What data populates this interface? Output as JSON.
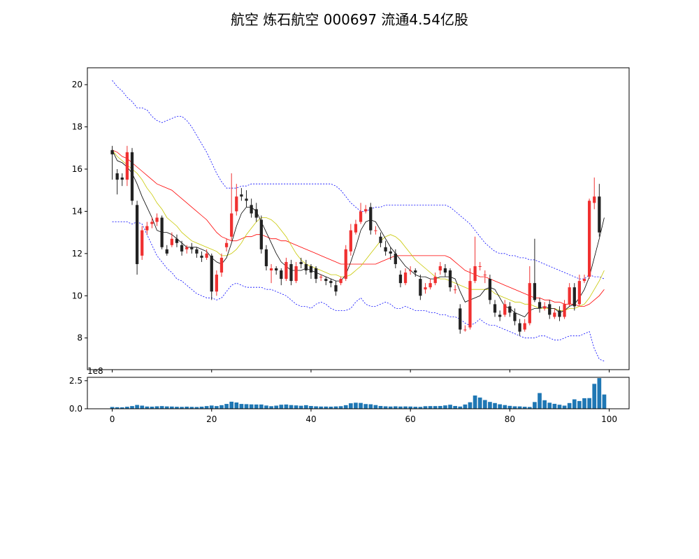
{
  "chart_data": {
    "type": "candlestick",
    "title": "航空 炼石航空 000697 流通4.54亿股",
    "colors": {
      "up": "#f03030",
      "down": "#222222",
      "ma5": "#000000",
      "ma10": "#c8c800",
      "ma20": "#ff0000",
      "boll": "#0000ff",
      "volume": "#1f77b4"
    },
    "price_axis": {
      "ylim": [
        6.5,
        20.8
      ],
      "ticks": [
        8,
        10,
        12,
        14,
        16,
        18,
        20
      ]
    },
    "volume_axis": {
      "ylim": [
        0,
        2.8
      ],
      "ticks": [
        0.0,
        2.5
      ],
      "tick_labels": [
        "0.0",
        "2.5"
      ],
      "offset_text": "1e8"
    },
    "x_axis": {
      "xlim": [
        -5,
        104
      ],
      "ticks": [
        0,
        20,
        40,
        60,
        80,
        100
      ]
    },
    "ohlc": [
      [
        16.9,
        16.7,
        17.1,
        15.5
      ],
      [
        15.8,
        15.5,
        16.0,
        14.8
      ],
      [
        15.6,
        15.5,
        15.8,
        15.2
      ],
      [
        15.5,
        16.8,
        17.1,
        15.2
      ],
      [
        16.8,
        14.5,
        17.0,
        14.3
      ],
      [
        14.3,
        11.5,
        14.5,
        11.0
      ],
      [
        11.9,
        13.1,
        13.3,
        11.7
      ],
      [
        13.1,
        13.3,
        13.5,
        12.9
      ],
      [
        13.4,
        13.5,
        13.7,
        13.2
      ],
      [
        13.5,
        13.7,
        13.9,
        13.3
      ],
      [
        13.7,
        12.3,
        13.8,
        12.2
      ],
      [
        12.2,
        12.0,
        12.4,
        11.9
      ],
      [
        12.4,
        12.7,
        13.0,
        12.3
      ],
      [
        12.7,
        12.5,
        12.9,
        12.3
      ],
      [
        12.4,
        12.1,
        12.6,
        11.9
      ],
      [
        12.2,
        12.3,
        12.4,
        12.0
      ],
      [
        12.3,
        12.2,
        12.5,
        12.0
      ],
      [
        12.2,
        12.0,
        12.3,
        11.8
      ],
      [
        11.9,
        11.8,
        12.1,
        11.6
      ],
      [
        11.8,
        12.0,
        12.2,
        11.7
      ],
      [
        11.9,
        10.2,
        12.0,
        9.8
      ],
      [
        10.2,
        11.0,
        11.2,
        10.0
      ],
      [
        11.1,
        11.8,
        12.0,
        10.9
      ],
      [
        12.3,
        12.5,
        12.7,
        12.1
      ],
      [
        12.8,
        13.9,
        15.8,
        12.6
      ],
      [
        14.0,
        14.7,
        15.3,
        13.8
      ],
      [
        14.8,
        14.7,
        15.1,
        14.5
      ],
      [
        14.6,
        14.5,
        15.0,
        14.2
      ],
      [
        14.3,
        13.9,
        14.6,
        13.7
      ],
      [
        14.1,
        13.7,
        14.4,
        13.5
      ],
      [
        13.6,
        12.2,
        13.8,
        12.0
      ],
      [
        12.2,
        11.4,
        12.4,
        11.2
      ],
      [
        11.2,
        11.3,
        11.5,
        10.6
      ],
      [
        11.3,
        11.2,
        11.4,
        11.0
      ],
      [
        11.2,
        10.8,
        11.3,
        10.5
      ],
      [
        10.8,
        11.6,
        11.8,
        10.7
      ],
      [
        11.5,
        10.7,
        11.7,
        10.5
      ],
      [
        10.7,
        11.4,
        11.6,
        10.6
      ],
      [
        11.6,
        11.5,
        11.8,
        11.3
      ],
      [
        11.5,
        11.2,
        11.7,
        11.0
      ],
      [
        11.4,
        11.1,
        11.5,
        10.8
      ],
      [
        11.3,
        10.8,
        11.4,
        10.6
      ],
      [
        10.9,
        10.9,
        11.0,
        10.7
      ],
      [
        10.8,
        10.7,
        10.9,
        10.5
      ],
      [
        10.7,
        10.6,
        10.8,
        10.4
      ],
      [
        10.5,
        10.2,
        10.7,
        10.0
      ],
      [
        10.6,
        10.8,
        10.9,
        10.5
      ],
      [
        10.8,
        12.2,
        12.4,
        10.7
      ],
      [
        12.1,
        13.1,
        13.4,
        11.9
      ],
      [
        13.0,
        13.4,
        13.6,
        12.9
      ],
      [
        13.5,
        14.0,
        14.4,
        13.4
      ],
      [
        14.0,
        14.1,
        14.3,
        13.9
      ],
      [
        14.2,
        13.1,
        14.4,
        12.9
      ],
      [
        13.1,
        13.1,
        13.3,
        12.9
      ],
      [
        12.8,
        12.5,
        13.0,
        12.3
      ],
      [
        12.3,
        12.1,
        12.6,
        11.9
      ],
      [
        12.1,
        12.0,
        12.3,
        11.7
      ],
      [
        12.0,
        11.5,
        12.2,
        11.3
      ],
      [
        11.0,
        10.6,
        11.2,
        10.4
      ],
      [
        10.6,
        11.1,
        11.3,
        10.5
      ],
      [
        11.2,
        11.2,
        11.4,
        11.0
      ],
      [
        11.2,
        11.1,
        11.3,
        10.9
      ],
      [
        10.8,
        10.0,
        11.0,
        9.8
      ],
      [
        10.3,
        10.4,
        10.6,
        10.1
      ],
      [
        10.4,
        10.6,
        10.8,
        10.3
      ],
      [
        10.6,
        10.9,
        11.1,
        10.5
      ],
      [
        11.2,
        11.4,
        11.6,
        11.0
      ],
      [
        11.3,
        11.1,
        11.5,
        10.9
      ],
      [
        11.2,
        10.4,
        11.3,
        10.2
      ],
      [
        10.3,
        10.3,
        10.5,
        10.1
      ],
      [
        9.4,
        8.4,
        9.6,
        8.2
      ],
      [
        8.4,
        8.4,
        8.6,
        8.3
      ],
      [
        8.5,
        10.7,
        11.3,
        8.4
      ],
      [
        10.7,
        11.4,
        12.8,
        10.6
      ],
      [
        11.4,
        11.4,
        11.6,
        11.2
      ],
      [
        11.0,
        11.0,
        11.2,
        10.6
      ],
      [
        10.8,
        9.8,
        11.0,
        9.6
      ],
      [
        9.6,
        9.2,
        9.8,
        9.0
      ],
      [
        9.1,
        9.0,
        9.3,
        8.8
      ],
      [
        9.1,
        9.6,
        9.8,
        9.0
      ],
      [
        9.5,
        9.2,
        9.7,
        9.0
      ],
      [
        9.2,
        8.8,
        9.4,
        8.6
      ],
      [
        8.7,
        8.3,
        8.9,
        8.1
      ],
      [
        8.4,
        8.7,
        8.9,
        8.3
      ],
      [
        8.7,
        10.6,
        11.4,
        8.6
      ],
      [
        10.6,
        9.8,
        12.7,
        9.7
      ],
      [
        9.7,
        9.4,
        9.9,
        9.2
      ],
      [
        9.4,
        9.5,
        9.7,
        9.3
      ],
      [
        9.6,
        9.1,
        9.8,
        8.9
      ],
      [
        9.0,
        9.2,
        9.4,
        8.9
      ],
      [
        9.3,
        9.0,
        9.5,
        8.8
      ],
      [
        9.0,
        9.6,
        9.8,
        8.9
      ],
      [
        9.6,
        10.4,
        10.6,
        9.5
      ],
      [
        10.4,
        9.5,
        10.6,
        9.3
      ],
      [
        9.6,
        10.7,
        11.0,
        9.5
      ],
      [
        10.7,
        10.8,
        11.0,
        10.6
      ],
      [
        10.9,
        14.5,
        14.6,
        10.8
      ],
      [
        14.4,
        14.7,
        15.6,
        14.1
      ],
      [
        14.7,
        13.0,
        15.3,
        12.8
      ]
    ],
    "ma5": [
      16.9,
      16.4,
      16.3,
      16.1,
      15.8,
      15.3,
      14.7,
      14.2,
      13.7,
      13.1,
      13.0,
      13.0,
      12.9,
      12.7,
      12.5,
      12.3,
      12.3,
      12.3,
      12.2,
      12.1,
      11.8,
      11.6,
      11.5,
      11.8,
      12.5,
      13.3,
      13.9,
      14.2,
      14.2,
      14.0,
      13.5,
      13.0,
      12.5,
      12.0,
      11.6,
      11.4,
      11.2,
      11.2,
      11.2,
      11.3,
      11.2,
      11.1,
      11.0,
      10.9,
      10.8,
      10.7,
      10.7,
      11.0,
      11.6,
      12.3,
      13.1,
      13.5,
      13.6,
      13.5,
      13.1,
      12.7,
      12.3,
      12.0,
      11.7,
      11.4,
      11.2,
      11.0,
      10.9,
      10.9,
      10.8,
      10.8,
      10.9,
      10.9,
      10.9,
      10.8,
      10.2,
      9.7,
      9.8,
      9.9,
      10.0,
      10.3,
      10.4,
      10.3,
      9.9,
      9.5,
      9.4,
      9.2,
      9.1,
      9.0,
      9.3,
      9.4,
      9.4,
      9.5,
      9.4,
      9.4,
      9.2,
      9.3,
      9.5,
      9.6,
      9.9,
      10.3,
      10.9,
      11.8,
      12.7,
      13.7
    ],
    "ma10": [
      16.9,
      16.6,
      16.4,
      16.2,
      16.0,
      15.8,
      15.5,
      15.1,
      14.8,
      14.4,
      14.1,
      13.7,
      13.5,
      13.3,
      13.0,
      12.8,
      12.6,
      12.5,
      12.4,
      12.3,
      12.2,
      12.1,
      11.9,
      11.9,
      12.0,
      12.2,
      12.5,
      12.9,
      13.2,
      13.5,
      13.7,
      13.7,
      13.6,
      13.4,
      13.1,
      12.8,
      12.4,
      12.0,
      11.7,
      11.5,
      11.4,
      11.3,
      11.2,
      11.1,
      11.0,
      11.0,
      10.9,
      10.9,
      11.0,
      11.2,
      11.4,
      11.7,
      12.0,
      12.3,
      12.6,
      12.8,
      12.9,
      12.8,
      12.6,
      12.3,
      12.0,
      11.7,
      11.5,
      11.3,
      11.1,
      10.9,
      10.8,
      10.8,
      10.7,
      10.6,
      10.5,
      10.4,
      10.3,
      10.3,
      10.3,
      10.3,
      10.3,
      10.1,
      10.0,
      9.9,
      9.8,
      9.7,
      9.7,
      9.6,
      9.6,
      9.5,
      9.4,
      9.4,
      9.4,
      9.4,
      9.3,
      9.3,
      9.4,
      9.4,
      9.5,
      9.6,
      9.9,
      10.3,
      10.7,
      11.2
    ],
    "ma20": [
      16.9,
      16.8,
      16.6,
      16.5,
      16.3,
      16.1,
      15.9,
      15.7,
      15.5,
      15.3,
      15.2,
      15.1,
      15.0,
      14.8,
      14.6,
      14.4,
      14.2,
      14.0,
      13.8,
      13.6,
      13.3,
      13.0,
      12.8,
      12.7,
      12.6,
      12.6,
      12.7,
      12.8,
      12.8,
      12.9,
      12.9,
      12.8,
      12.7,
      12.7,
      12.6,
      12.6,
      12.5,
      12.4,
      12.3,
      12.2,
      12.1,
      12.0,
      11.9,
      11.8,
      11.7,
      11.6,
      11.5,
      11.5,
      11.5,
      11.5,
      11.5,
      11.5,
      11.5,
      11.5,
      11.6,
      11.7,
      11.8,
      11.9,
      11.9,
      11.9,
      11.9,
      11.9,
      11.9,
      11.9,
      11.9,
      11.9,
      11.9,
      11.9,
      11.8,
      11.6,
      11.4,
      11.2,
      11.1,
      11.0,
      10.9,
      10.9,
      10.8,
      10.7,
      10.6,
      10.5,
      10.4,
      10.3,
      10.2,
      10.1,
      10.0,
      9.9,
      9.9,
      9.8,
      9.8,
      9.7,
      9.7,
      9.6,
      9.6,
      9.6,
      9.5,
      9.5,
      9.6,
      9.8,
      10.0,
      10.3
    ],
    "boll_upper": [
      20.2,
      19.9,
      19.7,
      19.4,
      19.2,
      18.9,
      18.9,
      18.8,
      18.5,
      18.3,
      18.2,
      18.3,
      18.4,
      18.5,
      18.5,
      18.3,
      18.0,
      17.6,
      17.2,
      16.8,
      16.3,
      15.8,
      15.4,
      15.1,
      15.1,
      15.1,
      15.2,
      15.2,
      15.3,
      15.3,
      15.3,
      15.3,
      15.3,
      15.3,
      15.3,
      15.3,
      15.3,
      15.3,
      15.3,
      15.3,
      15.3,
      15.3,
      15.3,
      15.3,
      15.3,
      15.2,
      15.0,
      14.7,
      14.4,
      14.2,
      14.0,
      14.0,
      14.1,
      14.2,
      14.2,
      14.3,
      14.3,
      14.3,
      14.3,
      14.3,
      14.3,
      14.3,
      14.3,
      14.3,
      14.3,
      14.3,
      14.3,
      14.3,
      14.2,
      14.0,
      13.8,
      13.6,
      13.4,
      13.1,
      12.8,
      12.5,
      12.3,
      12.1,
      12.0,
      12.0,
      11.9,
      11.9,
      11.8,
      11.8,
      11.7,
      11.7,
      11.6,
      11.5,
      11.4,
      11.3,
      11.2,
      11.1,
      11.0,
      10.9,
      10.8,
      10.8,
      11.0,
      10.9,
      10.9,
      10.8
    ],
    "boll_lower": [
      13.5,
      13.5,
      13.5,
      13.5,
      13.4,
      13.5,
      13.4,
      12.9,
      12.4,
      11.9,
      11.6,
      11.3,
      11.1,
      10.8,
      10.7,
      10.5,
      10.3,
      10.1,
      10.0,
      9.9,
      9.9,
      9.8,
      9.9,
      10.2,
      10.5,
      10.6,
      10.5,
      10.4,
      10.4,
      10.4,
      10.4,
      10.3,
      10.3,
      10.2,
      10.1,
      10.0,
      9.8,
      9.6,
      9.5,
      9.5,
      9.4,
      9.6,
      9.7,
      9.6,
      9.4,
      9.3,
      9.3,
      9.3,
      9.4,
      9.7,
      9.9,
      9.6,
      9.5,
      9.5,
      9.6,
      9.7,
      9.6,
      9.4,
      9.4,
      9.5,
      9.4,
      9.3,
      9.3,
      9.3,
      9.2,
      9.2,
      9.1,
      9.1,
      9.0,
      9.0,
      8.9,
      8.7,
      8.6,
      8.7,
      8.9,
      8.7,
      8.6,
      8.6,
      8.5,
      8.4,
      8.3,
      8.2,
      8.1,
      8.0,
      8.0,
      8.0,
      8.1,
      8.1,
      8.0,
      7.9,
      7.9,
      8.0,
      8.1,
      8.1,
      8.1,
      8.2,
      8.3,
      7.5,
      7.0,
      6.9
    ],
    "volume": [
      0.16,
      0.14,
      0.13,
      0.18,
      0.24,
      0.34,
      0.28,
      0.2,
      0.19,
      0.22,
      0.24,
      0.21,
      0.2,
      0.18,
      0.17,
      0.19,
      0.17,
      0.16,
      0.19,
      0.24,
      0.29,
      0.24,
      0.32,
      0.43,
      0.63,
      0.56,
      0.43,
      0.41,
      0.39,
      0.38,
      0.38,
      0.29,
      0.23,
      0.28,
      0.36,
      0.38,
      0.33,
      0.3,
      0.27,
      0.32,
      0.25,
      0.22,
      0.2,
      0.2,
      0.19,
      0.21,
      0.23,
      0.32,
      0.49,
      0.54,
      0.52,
      0.42,
      0.4,
      0.33,
      0.25,
      0.22,
      0.2,
      0.22,
      0.2,
      0.21,
      0.2,
      0.18,
      0.17,
      0.23,
      0.24,
      0.24,
      0.25,
      0.3,
      0.36,
      0.25,
      0.2,
      0.38,
      0.58,
      1.18,
      1.0,
      0.78,
      0.61,
      0.51,
      0.4,
      0.33,
      0.26,
      0.22,
      0.21,
      0.18,
      0.16,
      0.6,
      1.4,
      0.76,
      0.54,
      0.44,
      0.36,
      0.28,
      0.51,
      0.84,
      0.69,
      0.94,
      0.95,
      2.22,
      2.73,
      1.27
    ]
  }
}
